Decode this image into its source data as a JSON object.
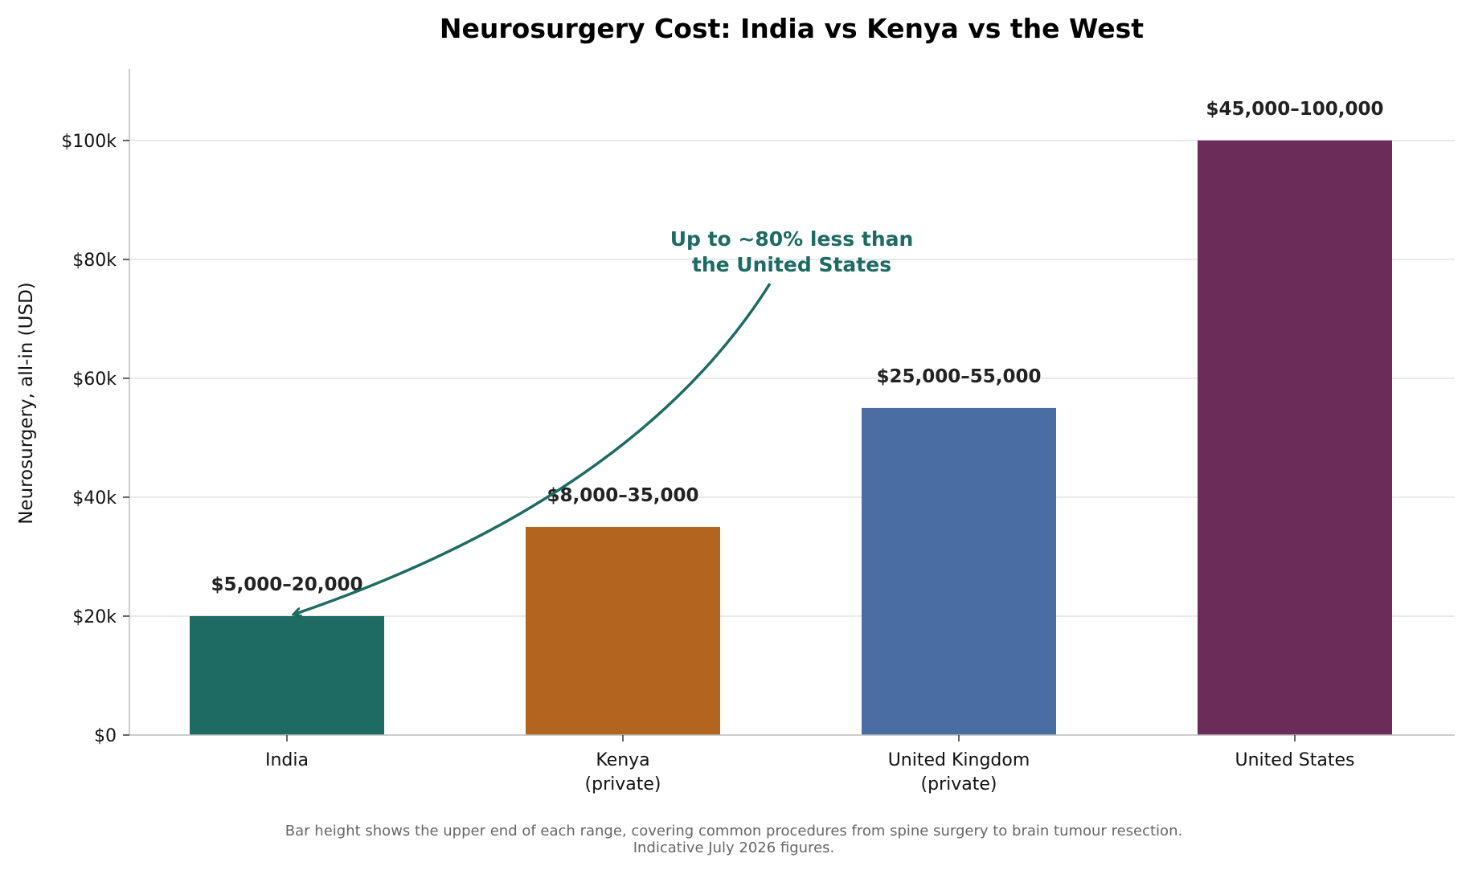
{
  "chart_data": {
    "type": "bar",
    "title": "Neurosurgery Cost: India vs Kenya vs the West",
    "ylabel": "Neurosurgery, all-in (USD)",
    "xlabel": "",
    "ylim": [
      0,
      112000
    ],
    "y_ticks": [
      0,
      20000,
      40000,
      60000,
      80000,
      100000
    ],
    "y_tick_labels": [
      "$0",
      "$20k",
      "$40k",
      "$60k",
      "$80k",
      "$100k"
    ],
    "grid": "horizontal",
    "categories": [
      [
        "India"
      ],
      [
        "Kenya",
        "(private)"
      ],
      [
        "United Kingdom",
        "(private)"
      ],
      [
        "United States"
      ]
    ],
    "values": [
      20000,
      35000,
      55000,
      100000
    ],
    "value_labels": [
      "$5,000–20,000",
      "$8,000–35,000",
      "$25,000–55,000",
      "$45,000–100,000"
    ],
    "colors": [
      "#1d6b62",
      "#b3651f",
      "#4a6ea3",
      "#6b2c5a"
    ],
    "annotation": {
      "lines": [
        "Up to ~80% less than",
        "the United States"
      ],
      "color": "#1d6b62",
      "arrow_target_category": 0,
      "arrow_target_value": 20000
    },
    "footnote": [
      "Bar height shows the upper end of each range, covering common procedures from spine surgery to brain tumour resection.",
      "Indicative July 2026 figures."
    ]
  }
}
